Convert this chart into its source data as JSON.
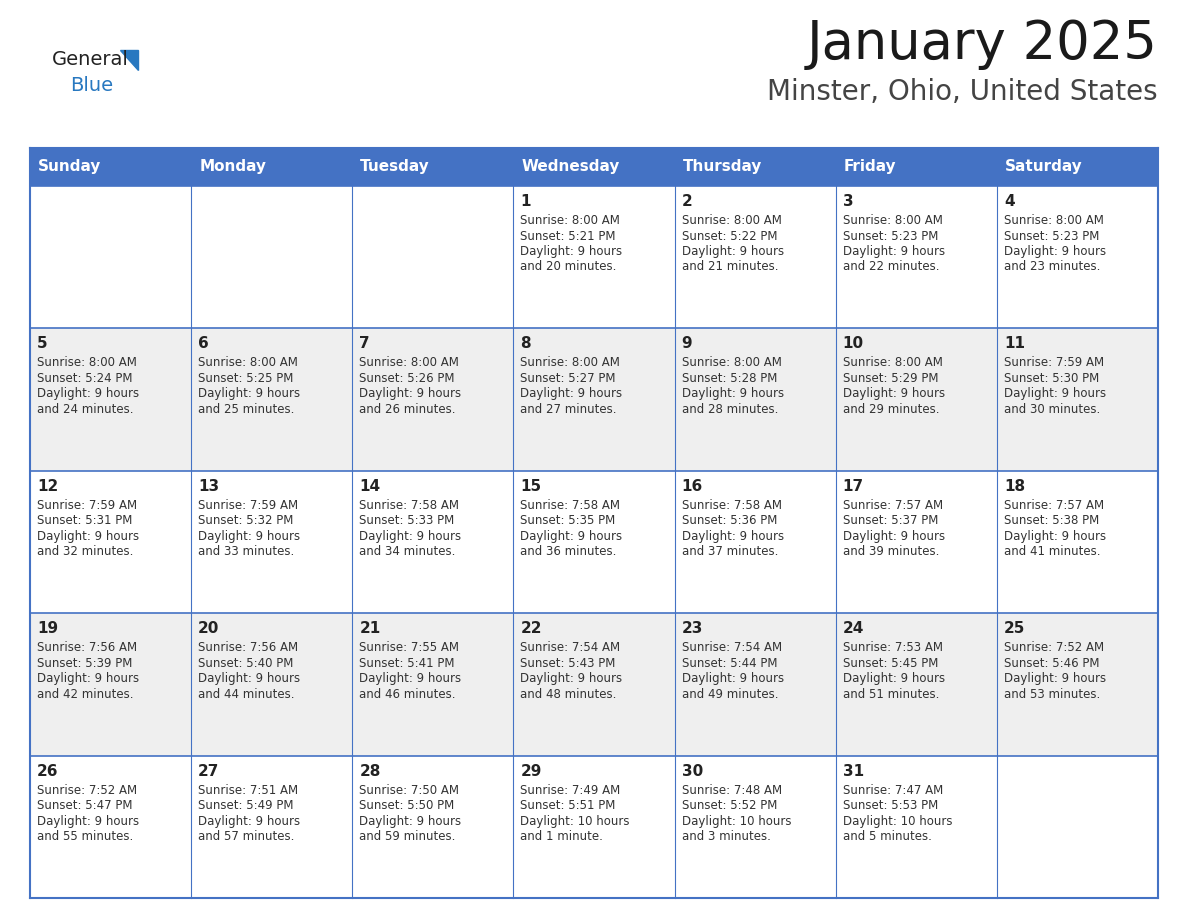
{
  "title": "January 2025",
  "subtitle": "Minster, Ohio, United States",
  "days_of_week": [
    "Sunday",
    "Monday",
    "Tuesday",
    "Wednesday",
    "Thursday",
    "Friday",
    "Saturday"
  ],
  "header_bg": "#4472C4",
  "header_text_color": "#FFFFFF",
  "row_colors": [
    "#FFFFFF",
    "#EFEFEF"
  ],
  "cell_border_color": "#4472C4",
  "text_color": "#333333",
  "calendar": [
    [
      {
        "day": null
      },
      {
        "day": null
      },
      {
        "day": null
      },
      {
        "day": 1,
        "sunrise": "8:00 AM",
        "sunset": "5:21 PM",
        "daylight_h": "9 hours",
        "daylight_m": "and 20 minutes."
      },
      {
        "day": 2,
        "sunrise": "8:00 AM",
        "sunset": "5:22 PM",
        "daylight_h": "9 hours",
        "daylight_m": "and 21 minutes."
      },
      {
        "day": 3,
        "sunrise": "8:00 AM",
        "sunset": "5:23 PM",
        "daylight_h": "9 hours",
        "daylight_m": "and 22 minutes."
      },
      {
        "day": 4,
        "sunrise": "8:00 AM",
        "sunset": "5:23 PM",
        "daylight_h": "9 hours",
        "daylight_m": "and 23 minutes."
      }
    ],
    [
      {
        "day": 5,
        "sunrise": "8:00 AM",
        "sunset": "5:24 PM",
        "daylight_h": "9 hours",
        "daylight_m": "and 24 minutes."
      },
      {
        "day": 6,
        "sunrise": "8:00 AM",
        "sunset": "5:25 PM",
        "daylight_h": "9 hours",
        "daylight_m": "and 25 minutes."
      },
      {
        "day": 7,
        "sunrise": "8:00 AM",
        "sunset": "5:26 PM",
        "daylight_h": "9 hours",
        "daylight_m": "and 26 minutes."
      },
      {
        "day": 8,
        "sunrise": "8:00 AM",
        "sunset": "5:27 PM",
        "daylight_h": "9 hours",
        "daylight_m": "and 27 minutes."
      },
      {
        "day": 9,
        "sunrise": "8:00 AM",
        "sunset": "5:28 PM",
        "daylight_h": "9 hours",
        "daylight_m": "and 28 minutes."
      },
      {
        "day": 10,
        "sunrise": "8:00 AM",
        "sunset": "5:29 PM",
        "daylight_h": "9 hours",
        "daylight_m": "and 29 minutes."
      },
      {
        "day": 11,
        "sunrise": "7:59 AM",
        "sunset": "5:30 PM",
        "daylight_h": "9 hours",
        "daylight_m": "and 30 minutes."
      }
    ],
    [
      {
        "day": 12,
        "sunrise": "7:59 AM",
        "sunset": "5:31 PM",
        "daylight_h": "9 hours",
        "daylight_m": "and 32 minutes."
      },
      {
        "day": 13,
        "sunrise": "7:59 AM",
        "sunset": "5:32 PM",
        "daylight_h": "9 hours",
        "daylight_m": "and 33 minutes."
      },
      {
        "day": 14,
        "sunrise": "7:58 AM",
        "sunset": "5:33 PM",
        "daylight_h": "9 hours",
        "daylight_m": "and 34 minutes."
      },
      {
        "day": 15,
        "sunrise": "7:58 AM",
        "sunset": "5:35 PM",
        "daylight_h": "9 hours",
        "daylight_m": "and 36 minutes."
      },
      {
        "day": 16,
        "sunrise": "7:58 AM",
        "sunset": "5:36 PM",
        "daylight_h": "9 hours",
        "daylight_m": "and 37 minutes."
      },
      {
        "day": 17,
        "sunrise": "7:57 AM",
        "sunset": "5:37 PM",
        "daylight_h": "9 hours",
        "daylight_m": "and 39 minutes."
      },
      {
        "day": 18,
        "sunrise": "7:57 AM",
        "sunset": "5:38 PM",
        "daylight_h": "9 hours",
        "daylight_m": "and 41 minutes."
      }
    ],
    [
      {
        "day": 19,
        "sunrise": "7:56 AM",
        "sunset": "5:39 PM",
        "daylight_h": "9 hours",
        "daylight_m": "and 42 minutes."
      },
      {
        "day": 20,
        "sunrise": "7:56 AM",
        "sunset": "5:40 PM",
        "daylight_h": "9 hours",
        "daylight_m": "and 44 minutes."
      },
      {
        "day": 21,
        "sunrise": "7:55 AM",
        "sunset": "5:41 PM",
        "daylight_h": "9 hours",
        "daylight_m": "and 46 minutes."
      },
      {
        "day": 22,
        "sunrise": "7:54 AM",
        "sunset": "5:43 PM",
        "daylight_h": "9 hours",
        "daylight_m": "and 48 minutes."
      },
      {
        "day": 23,
        "sunrise": "7:54 AM",
        "sunset": "5:44 PM",
        "daylight_h": "9 hours",
        "daylight_m": "and 49 minutes."
      },
      {
        "day": 24,
        "sunrise": "7:53 AM",
        "sunset": "5:45 PM",
        "daylight_h": "9 hours",
        "daylight_m": "and 51 minutes."
      },
      {
        "day": 25,
        "sunrise": "7:52 AM",
        "sunset": "5:46 PM",
        "daylight_h": "9 hours",
        "daylight_m": "and 53 minutes."
      }
    ],
    [
      {
        "day": 26,
        "sunrise": "7:52 AM",
        "sunset": "5:47 PM",
        "daylight_h": "9 hours",
        "daylight_m": "and 55 minutes."
      },
      {
        "day": 27,
        "sunrise": "7:51 AM",
        "sunset": "5:49 PM",
        "daylight_h": "9 hours",
        "daylight_m": "and 57 minutes."
      },
      {
        "day": 28,
        "sunrise": "7:50 AM",
        "sunset": "5:50 PM",
        "daylight_h": "9 hours",
        "daylight_m": "and 59 minutes."
      },
      {
        "day": 29,
        "sunrise": "7:49 AM",
        "sunset": "5:51 PM",
        "daylight_h": "10 hours",
        "daylight_m": "and 1 minute."
      },
      {
        "day": 30,
        "sunrise": "7:48 AM",
        "sunset": "5:52 PM",
        "daylight_h": "10 hours",
        "daylight_m": "and 3 minutes."
      },
      {
        "day": 31,
        "sunrise": "7:47 AM",
        "sunset": "5:53 PM",
        "daylight_h": "10 hours",
        "daylight_m": "and 5 minutes."
      },
      {
        "day": null
      }
    ]
  ]
}
